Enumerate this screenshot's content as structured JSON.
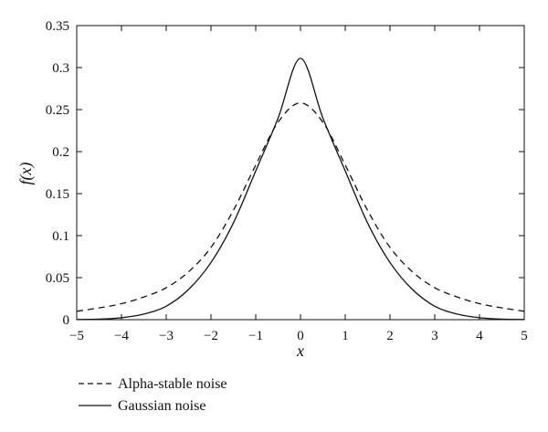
{
  "chart_data": {
    "type": "line",
    "title": "",
    "xlabel": "x",
    "ylabel": "f(x)",
    "xlim": [
      -5,
      5
    ],
    "ylim": [
      0,
      0.35
    ],
    "xticks": [
      -5,
      -4,
      -3,
      -2,
      -1,
      0,
      1,
      2,
      3,
      4,
      5
    ],
    "xtick_labels": [
      "−5",
      "−4",
      "−3",
      "−2",
      "−1",
      "0",
      "1",
      "2",
      "3",
      "4",
      "5"
    ],
    "yticks": [
      0,
      0.05,
      0.1,
      0.15,
      0.2,
      0.25,
      0.3,
      0.35
    ],
    "ytick_labels": [
      "0",
      "0.05",
      "0.1",
      "0.15",
      "0.2",
      "0.25",
      "0.3",
      "0.35"
    ],
    "grid": false,
    "legend_position": "bottom-left, below plot",
    "series": [
      {
        "name": "Alpha-stable noise",
        "style": "dashed",
        "color": "#111111",
        "x": [
          -5,
          -4.5,
          -4,
          -3.5,
          -3,
          -2.5,
          -2,
          -1.5,
          -1,
          -0.5,
          0,
          0.5,
          1,
          1.5,
          2,
          2.5,
          3,
          3.5,
          4,
          4.5,
          5
        ],
        "y": [
          0.01,
          0.014,
          0.019,
          0.027,
          0.038,
          0.057,
          0.086,
          0.13,
          0.184,
          0.235,
          0.258,
          0.235,
          0.184,
          0.13,
          0.086,
          0.057,
          0.038,
          0.027,
          0.019,
          0.014,
          0.01
        ]
      },
      {
        "name": "Gaussian noise",
        "style": "solid",
        "color": "#111111",
        "x": [
          -5,
          -4.5,
          -4,
          -3.5,
          -3,
          -2.5,
          -2,
          -1.5,
          -1,
          -0.5,
          0,
          0.5,
          1,
          1.5,
          2,
          2.5,
          3,
          3.5,
          4,
          4.5,
          5
        ],
        "y": [
          0.0002,
          0.0007,
          0.0023,
          0.0066,
          0.016,
          0.036,
          0.068,
          0.115,
          0.177,
          0.24,
          0.311,
          0.24,
          0.177,
          0.115,
          0.068,
          0.036,
          0.016,
          0.0066,
          0.0023,
          0.0007,
          0.0002
        ]
      }
    ]
  }
}
